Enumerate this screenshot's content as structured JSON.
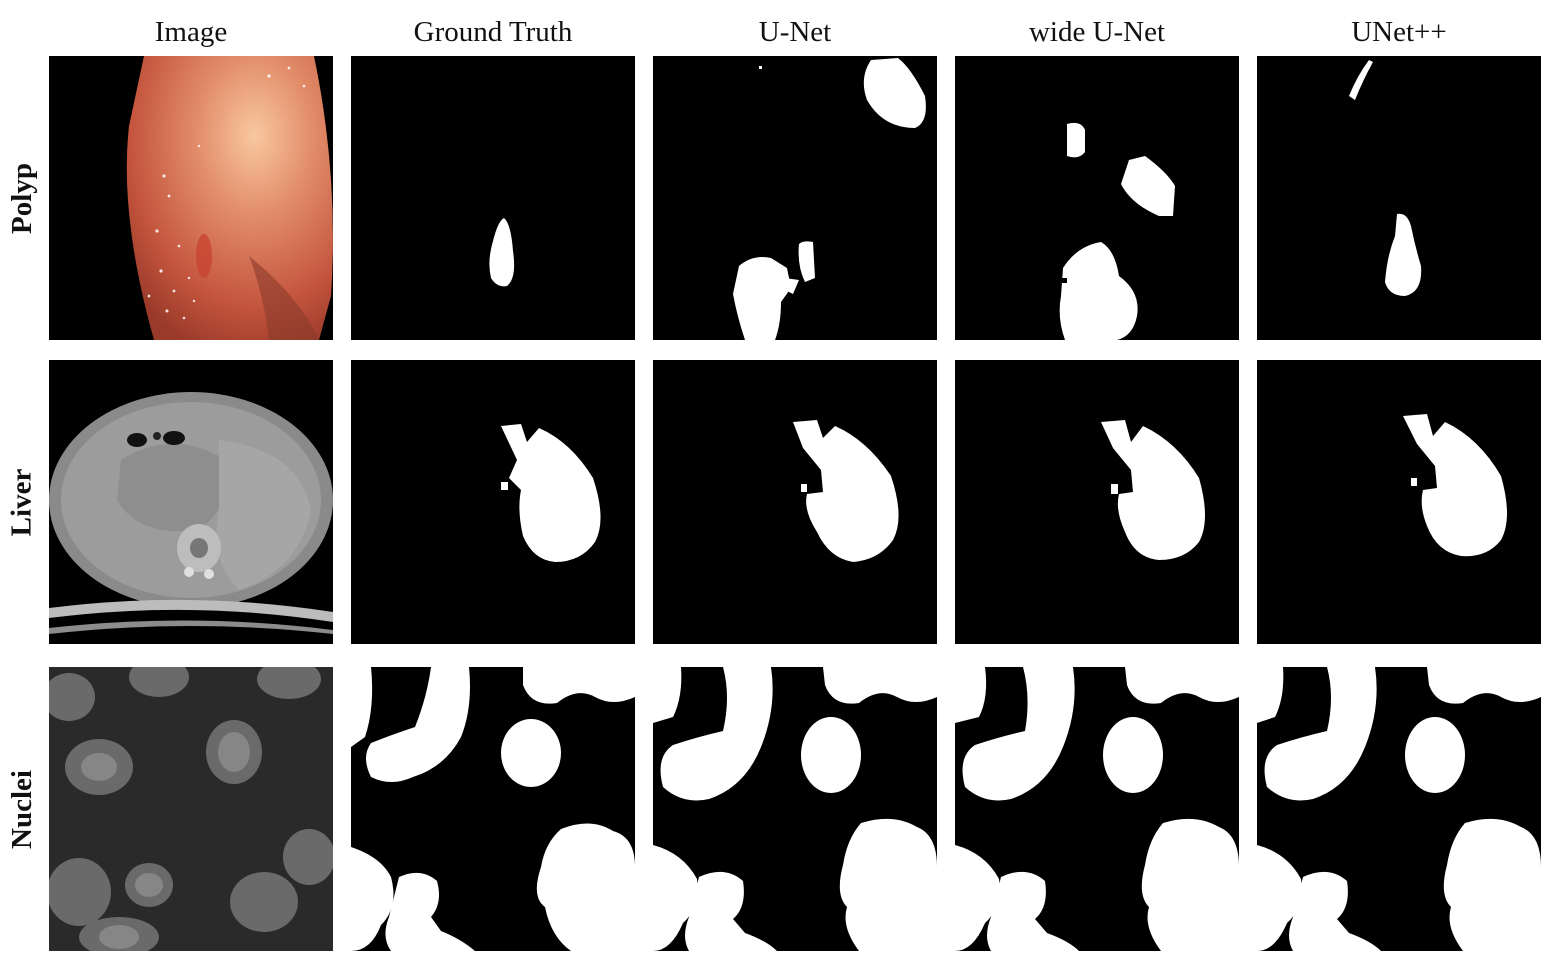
{
  "figure": {
    "columns": [
      "Image",
      "Ground Truth",
      "U-Net",
      "wide U-Net",
      "UNet++"
    ],
    "rows": [
      "Polyp",
      "Liver",
      "Nuclei"
    ]
  }
}
